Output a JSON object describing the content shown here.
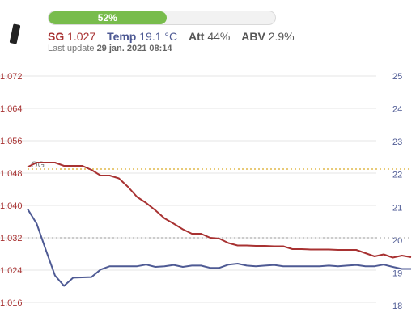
{
  "status": {
    "progress_percent": 52,
    "progress_label": "52%",
    "sg_label": "SG",
    "sg_value": "1.027",
    "temp_label": "Temp",
    "temp_value": "19.1 °C",
    "att_label": "Att",
    "att_value": "44%",
    "abv_label": "ABV",
    "abv_value": "2.9%",
    "last_update_label": "Last update",
    "last_update_value": "29 jan. 2021 08:14"
  },
  "colors": {
    "progress": "#78bc4c",
    "sg": "#a83232",
    "temp": "#4e5a94",
    "og_line": "#e0b84a",
    "target_line": "#bbbbbb",
    "grid": "#e6e6e6"
  },
  "chart_data": {
    "type": "line",
    "left_axis": {
      "ticks": [
        "1.072",
        "1.064",
        "1.056",
        "1.048",
        "1.040",
        "1.032",
        "1.024",
        "1.016"
      ],
      "range": [
        1.0128,
        1.0744
      ]
    },
    "right_axis": {
      "ticks": [
        "25",
        "24",
        "23",
        "22",
        "21",
        "20",
        "19",
        "18"
      ],
      "range": [
        17.7,
        25.3
      ]
    },
    "og_label": "OG",
    "og_value": 1.049,
    "target_sg_value": 1.032,
    "series": [
      {
        "axis": "left",
        "x": [
          0,
          1,
          2,
          3,
          4,
          5,
          6,
          7,
          8,
          9,
          10,
          11,
          12,
          13,
          14,
          15,
          16,
          17,
          18,
          19,
          20,
          21,
          22,
          23,
          24,
          25,
          26,
          27,
          28,
          29,
          30,
          31,
          32,
          33,
          34,
          35,
          36,
          37,
          38,
          39,
          40,
          41,
          42
        ],
        "values": [
          1.0495,
          1.0506,
          1.0506,
          1.0506,
          1.0498,
          1.0498,
          1.0498,
          1.0488,
          1.0474,
          1.0474,
          1.0467,
          1.0446,
          1.0421,
          1.0406,
          1.0388,
          1.0368,
          1.0355,
          1.0341,
          1.033,
          1.033,
          1.032,
          1.0318,
          1.0307,
          1.0301,
          1.0301,
          1.03,
          1.03,
          1.0299,
          1.0299,
          1.0292,
          1.0292,
          1.0291,
          1.0291,
          1.0291,
          1.029,
          1.029,
          1.029,
          1.0282,
          1.0274,
          1.0279,
          1.0271,
          1.0276,
          1.0272
        ]
      },
      {
        "axis": "right",
        "x": [
          0,
          1,
          2,
          3,
          4,
          5,
          6,
          7,
          8,
          9,
          10,
          11,
          12,
          13,
          14,
          15,
          16,
          17,
          18,
          19,
          20,
          21,
          22,
          23,
          24,
          25,
          26,
          27,
          28,
          29,
          30,
          31,
          32,
          33,
          34,
          35,
          36,
          37,
          38,
          39,
          40,
          41,
          42
        ],
        "values": [
          20.95,
          20.5,
          19.7,
          18.92,
          18.6,
          18.85,
          18.86,
          18.87,
          19.1,
          19.2,
          19.2,
          19.2,
          19.2,
          19.25,
          19.18,
          19.2,
          19.24,
          19.18,
          19.22,
          19.22,
          19.15,
          19.15,
          19.25,
          19.28,
          19.22,
          19.2,
          19.22,
          19.24,
          19.2,
          19.2,
          19.2,
          19.2,
          19.2,
          19.22,
          19.2,
          19.22,
          19.24,
          19.2,
          19.2,
          19.25,
          19.18,
          19.12,
          19.12
        ]
      }
    ]
  }
}
